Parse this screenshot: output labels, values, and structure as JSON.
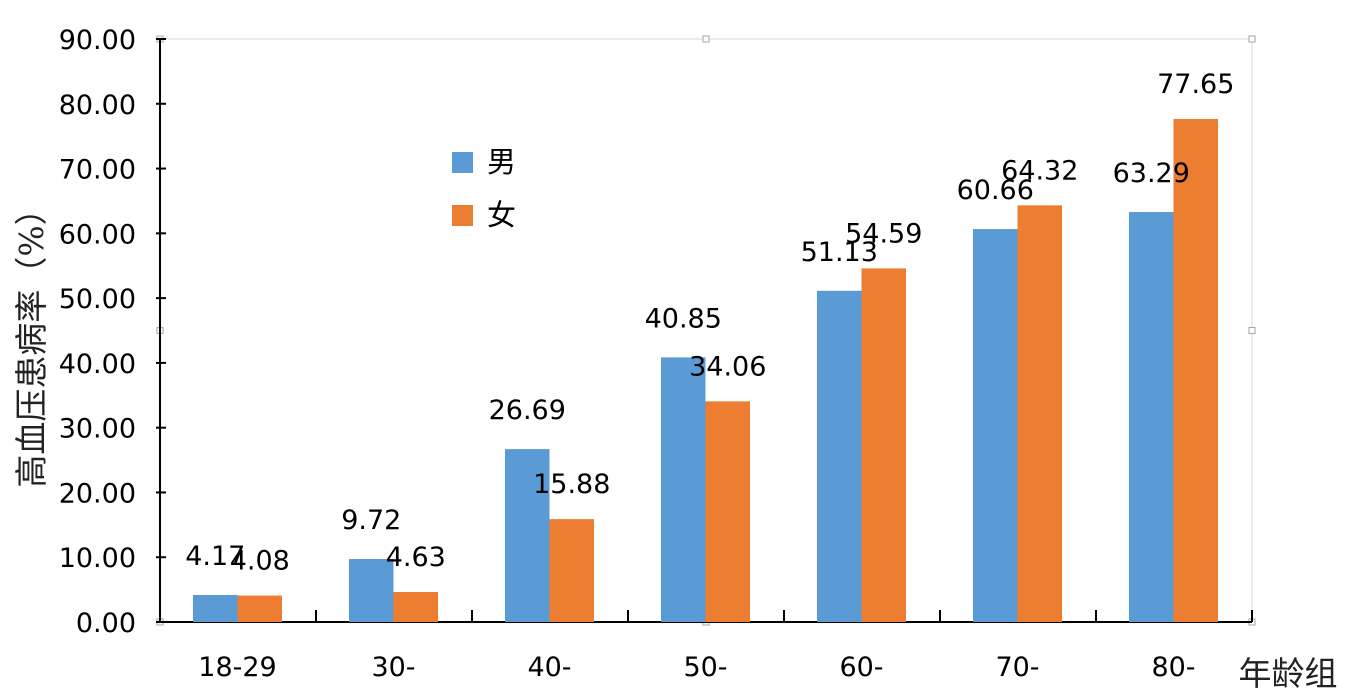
{
  "chart_data": {
    "type": "bar",
    "title": "",
    "xlabel": "年龄组",
    "ylabel": "高血压患病率（%）",
    "categories": [
      "18-29",
      "30-",
      "40-",
      "50-",
      "60-",
      "70-",
      "80-"
    ],
    "series": [
      {
        "name": "男",
        "color": "#5b9bd5",
        "values": [
          4.17,
          9.72,
          26.69,
          40.85,
          51.13,
          60.66,
          63.29
        ],
        "labels": [
          "4.17",
          "9.72",
          "26.69",
          "40.85",
          "51.13",
          "60.66",
          "63.29"
        ]
      },
      {
        "name": "女",
        "color": "#ed7d31",
        "values": [
          4.08,
          4.63,
          15.88,
          34.06,
          54.59,
          64.32,
          77.65
        ],
        "labels": [
          "4.08",
          "4.63",
          "15.88",
          "34.06",
          "54.59",
          "64.32",
          "77.65"
        ]
      }
    ],
    "ylim": [
      0,
      90
    ],
    "yticks": [
      "0.00",
      "10.00",
      "20.00",
      "30.00",
      "40.00",
      "50.00",
      "60.00",
      "70.00",
      "80.00",
      "90.00"
    ],
    "legend": "upper-left inside plot",
    "grid": false
  }
}
